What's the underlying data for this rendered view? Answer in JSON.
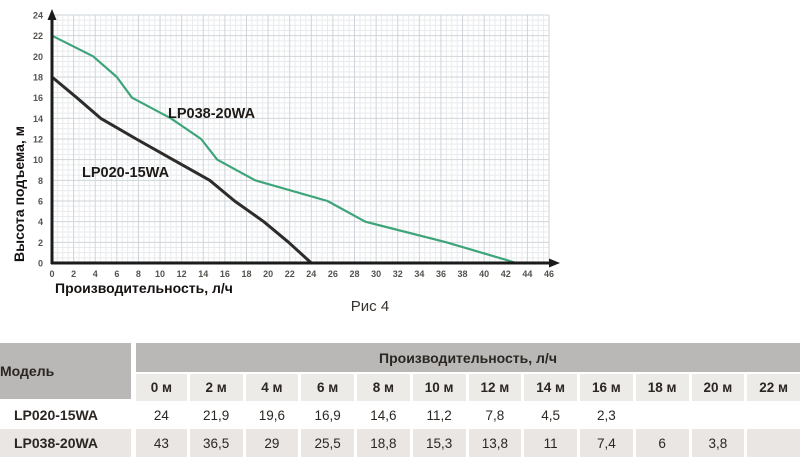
{
  "chart_data": {
    "type": "line",
    "title": "",
    "xlabel": "Производительность, л/ч",
    "ylabel": "Высота подъема, м",
    "caption": "Рис 4",
    "xlim": [
      0,
      46
    ],
    "ylim": [
      0,
      24
    ],
    "x_tick_step": 2,
    "y_tick_step": 2,
    "grid": true,
    "legend_position": "inline-labels",
    "series": [
      {
        "name": "LP020-15WA",
        "color": "#2e2c2a",
        "points": [
          [
            0,
            18
          ],
          [
            2.3,
            16
          ],
          [
            4.5,
            14
          ],
          [
            7.8,
            12
          ],
          [
            11.2,
            10
          ],
          [
            14.6,
            8
          ],
          [
            16.9,
            6
          ],
          [
            19.6,
            4
          ],
          [
            21.9,
            2
          ],
          [
            24,
            0
          ]
        ]
      },
      {
        "name": "LP038-20WA",
        "color": "#3ea47a",
        "points": [
          [
            0,
            22
          ],
          [
            3.8,
            20
          ],
          [
            6,
            18
          ],
          [
            7.4,
            16
          ],
          [
            11,
            14
          ],
          [
            13.8,
            12
          ],
          [
            15.3,
            10
          ],
          [
            18.8,
            8
          ],
          [
            25.5,
            6
          ],
          [
            29,
            4
          ],
          [
            36.5,
            2
          ],
          [
            43,
            0
          ]
        ]
      }
    ]
  },
  "table": {
    "model_header": "Модель",
    "group_header": "Производительность, л/ч",
    "columns": [
      "0 м",
      "2 м",
      "4 м",
      "6 м",
      "8 м",
      "10 м",
      "12 м",
      "14 м",
      "16 м",
      "18 м",
      "20 м",
      "22 м"
    ],
    "rows": [
      {
        "model": "LP020-15WA",
        "values": [
          "24",
          "21,9",
          "19,6",
          "16,9",
          "14,6",
          "11,2",
          "7,8",
          "4,5",
          "2,3",
          "",
          "",
          ""
        ]
      },
      {
        "model": "LP038-20WA",
        "values": [
          "43",
          "36,5",
          "29",
          "25,5",
          "18,8",
          "15,3",
          "13,8",
          "11",
          "7,4",
          "6",
          "3,8",
          ""
        ]
      }
    ]
  }
}
